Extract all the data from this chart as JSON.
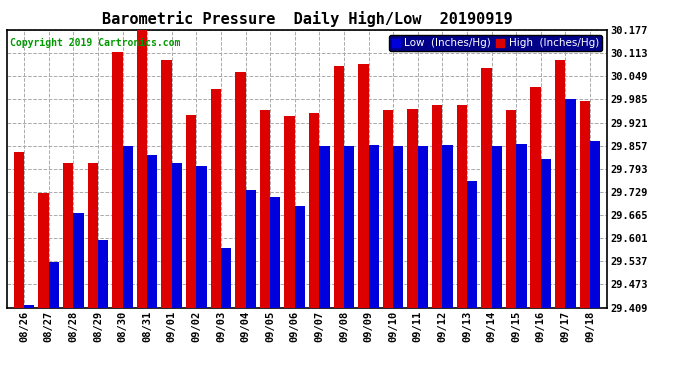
{
  "title": "Barometric Pressure  Daily High/Low  20190919",
  "copyright": "Copyright 2019 Cartronics.com",
  "legend_low": "Low  (Inches/Hg)",
  "legend_high": "High  (Inches/Hg)",
  "dates": [
    "08/26",
    "08/27",
    "08/28",
    "08/29",
    "08/30",
    "08/31",
    "09/01",
    "09/02",
    "09/03",
    "09/04",
    "09/05",
    "09/06",
    "09/07",
    "09/08",
    "09/09",
    "09/10",
    "09/11",
    "09/12",
    "09/13",
    "09/14",
    "09/15",
    "09/16",
    "09/17",
    "09/18"
  ],
  "low": [
    29.415,
    29.535,
    29.67,
    29.595,
    29.855,
    29.83,
    29.81,
    29.8,
    29.575,
    29.735,
    29.715,
    29.69,
    29.855,
    29.855,
    29.86,
    29.855,
    29.855,
    29.858,
    29.76,
    29.855,
    29.862,
    29.82,
    29.985,
    29.87
  ],
  "high": [
    29.84,
    29.725,
    29.808,
    29.808,
    30.116,
    30.177,
    30.095,
    29.942,
    30.015,
    30.06,
    29.955,
    29.94,
    29.948,
    30.078,
    30.082,
    29.955,
    29.958,
    29.97,
    29.97,
    30.072,
    29.955,
    30.02,
    30.095,
    29.98
  ],
  "ylim_min": 29.409,
  "ylim_max": 30.177,
  "yticks": [
    29.409,
    29.473,
    29.537,
    29.601,
    29.665,
    29.729,
    29.793,
    29.857,
    29.921,
    29.985,
    30.049,
    30.113,
    30.177
  ],
  "low_color": "#0000dd",
  "high_color": "#dd0000",
  "bg_color": "#ffffff",
  "grid_color": "#aaaaaa",
  "title_fontsize": 11,
  "tick_fontsize": 7.5,
  "copyright_fontsize": 7,
  "legend_fontsize": 7.5
}
